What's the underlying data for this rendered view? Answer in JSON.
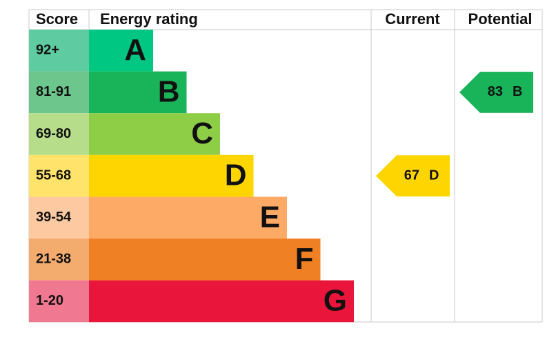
{
  "header": {
    "score": "Score",
    "rating": "Energy rating",
    "current": "Current",
    "potential": "Potential"
  },
  "bands": [
    {
      "score": "92+",
      "letter": "A",
      "color": "#00c781",
      "score_color": "#5fcba0"
    },
    {
      "score": "81-91",
      "letter": "B",
      "color": "#19b459",
      "score_color": "#6dc68b"
    },
    {
      "score": "69-80",
      "letter": "C",
      "color": "#8dce46",
      "score_color": "#b5dd8a"
    },
    {
      "score": "55-68",
      "letter": "D",
      "color": "#ffd500",
      "score_color": "#ffe36b"
    },
    {
      "score": "39-54",
      "letter": "E",
      "color": "#fcaa65",
      "score_color": "#fdc9a0"
    },
    {
      "score": "21-38",
      "letter": "F",
      "color": "#ef8023",
      "score_color": "#f4ab6e"
    },
    {
      "score": "1-20",
      "letter": "G",
      "color": "#e9153b",
      "score_color": "#f07890"
    }
  ],
  "current": {
    "value": 67,
    "letter": "D"
  },
  "potential": {
    "value": 83,
    "letter": "B"
  }
}
